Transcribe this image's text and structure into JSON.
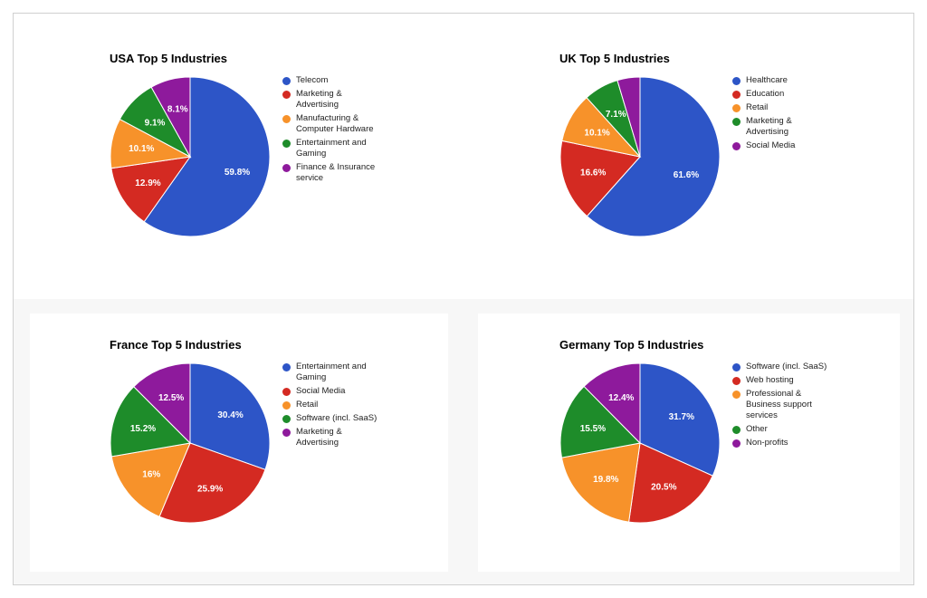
{
  "colors": {
    "blue": "#2d55c7",
    "red": "#d42a22",
    "orange": "#f7922a",
    "green": "#1e8c2a",
    "purple": "#8e1a9c"
  },
  "chart_data": [
    {
      "type": "pie",
      "title": "USA Top 5 Industries",
      "categories": [
        "Telecom",
        "Marketing & Advertising",
        "Manufacturing & Computer Hardware",
        "Entertainment and Gaming",
        "Finance & Insurance service"
      ],
      "values": [
        59.8,
        12.9,
        10.1,
        9.1,
        8.1
      ],
      "value_labels": [
        "59.8%",
        "12.9%",
        "10.1%",
        "9.1%",
        "8.1%"
      ],
      "legend_position": "right"
    },
    {
      "type": "pie",
      "title": "UK Top 5 Industries",
      "categories": [
        "Healthcare",
        "Education",
        "Retail",
        "Marketing & Advertising",
        "Social Media"
      ],
      "values": [
        61.6,
        16.6,
        10.1,
        7.1,
        4.6
      ],
      "value_labels": [
        "61.6%",
        "16.6%",
        "10.1%",
        "7.1%",
        ""
      ],
      "legend_position": "right"
    },
    {
      "type": "pie",
      "title": "France Top 5 Industries",
      "categories": [
        "Entertainment and Gaming",
        "Social Media",
        "Retail",
        "Software (incl. SaaS)",
        "Marketing & Advertising"
      ],
      "values": [
        30.4,
        25.9,
        16,
        15.2,
        12.5
      ],
      "value_labels": [
        "30.4%",
        "25.9%",
        "16%",
        "15.2%",
        "12.5%"
      ],
      "legend_position": "right"
    },
    {
      "type": "pie",
      "title": "Germany Top 5 Industries",
      "categories": [
        "Software (incl. SaaS)",
        "Web hosting",
        "Professional & Business support services",
        "Other",
        "Non-profits"
      ],
      "values": [
        31.7,
        20.5,
        19.8,
        15.5,
        12.4
      ],
      "value_labels": [
        "31.7%",
        "20.5%",
        "19.8%",
        "15.5%",
        "12.4%"
      ],
      "legend_position": "right"
    }
  ]
}
